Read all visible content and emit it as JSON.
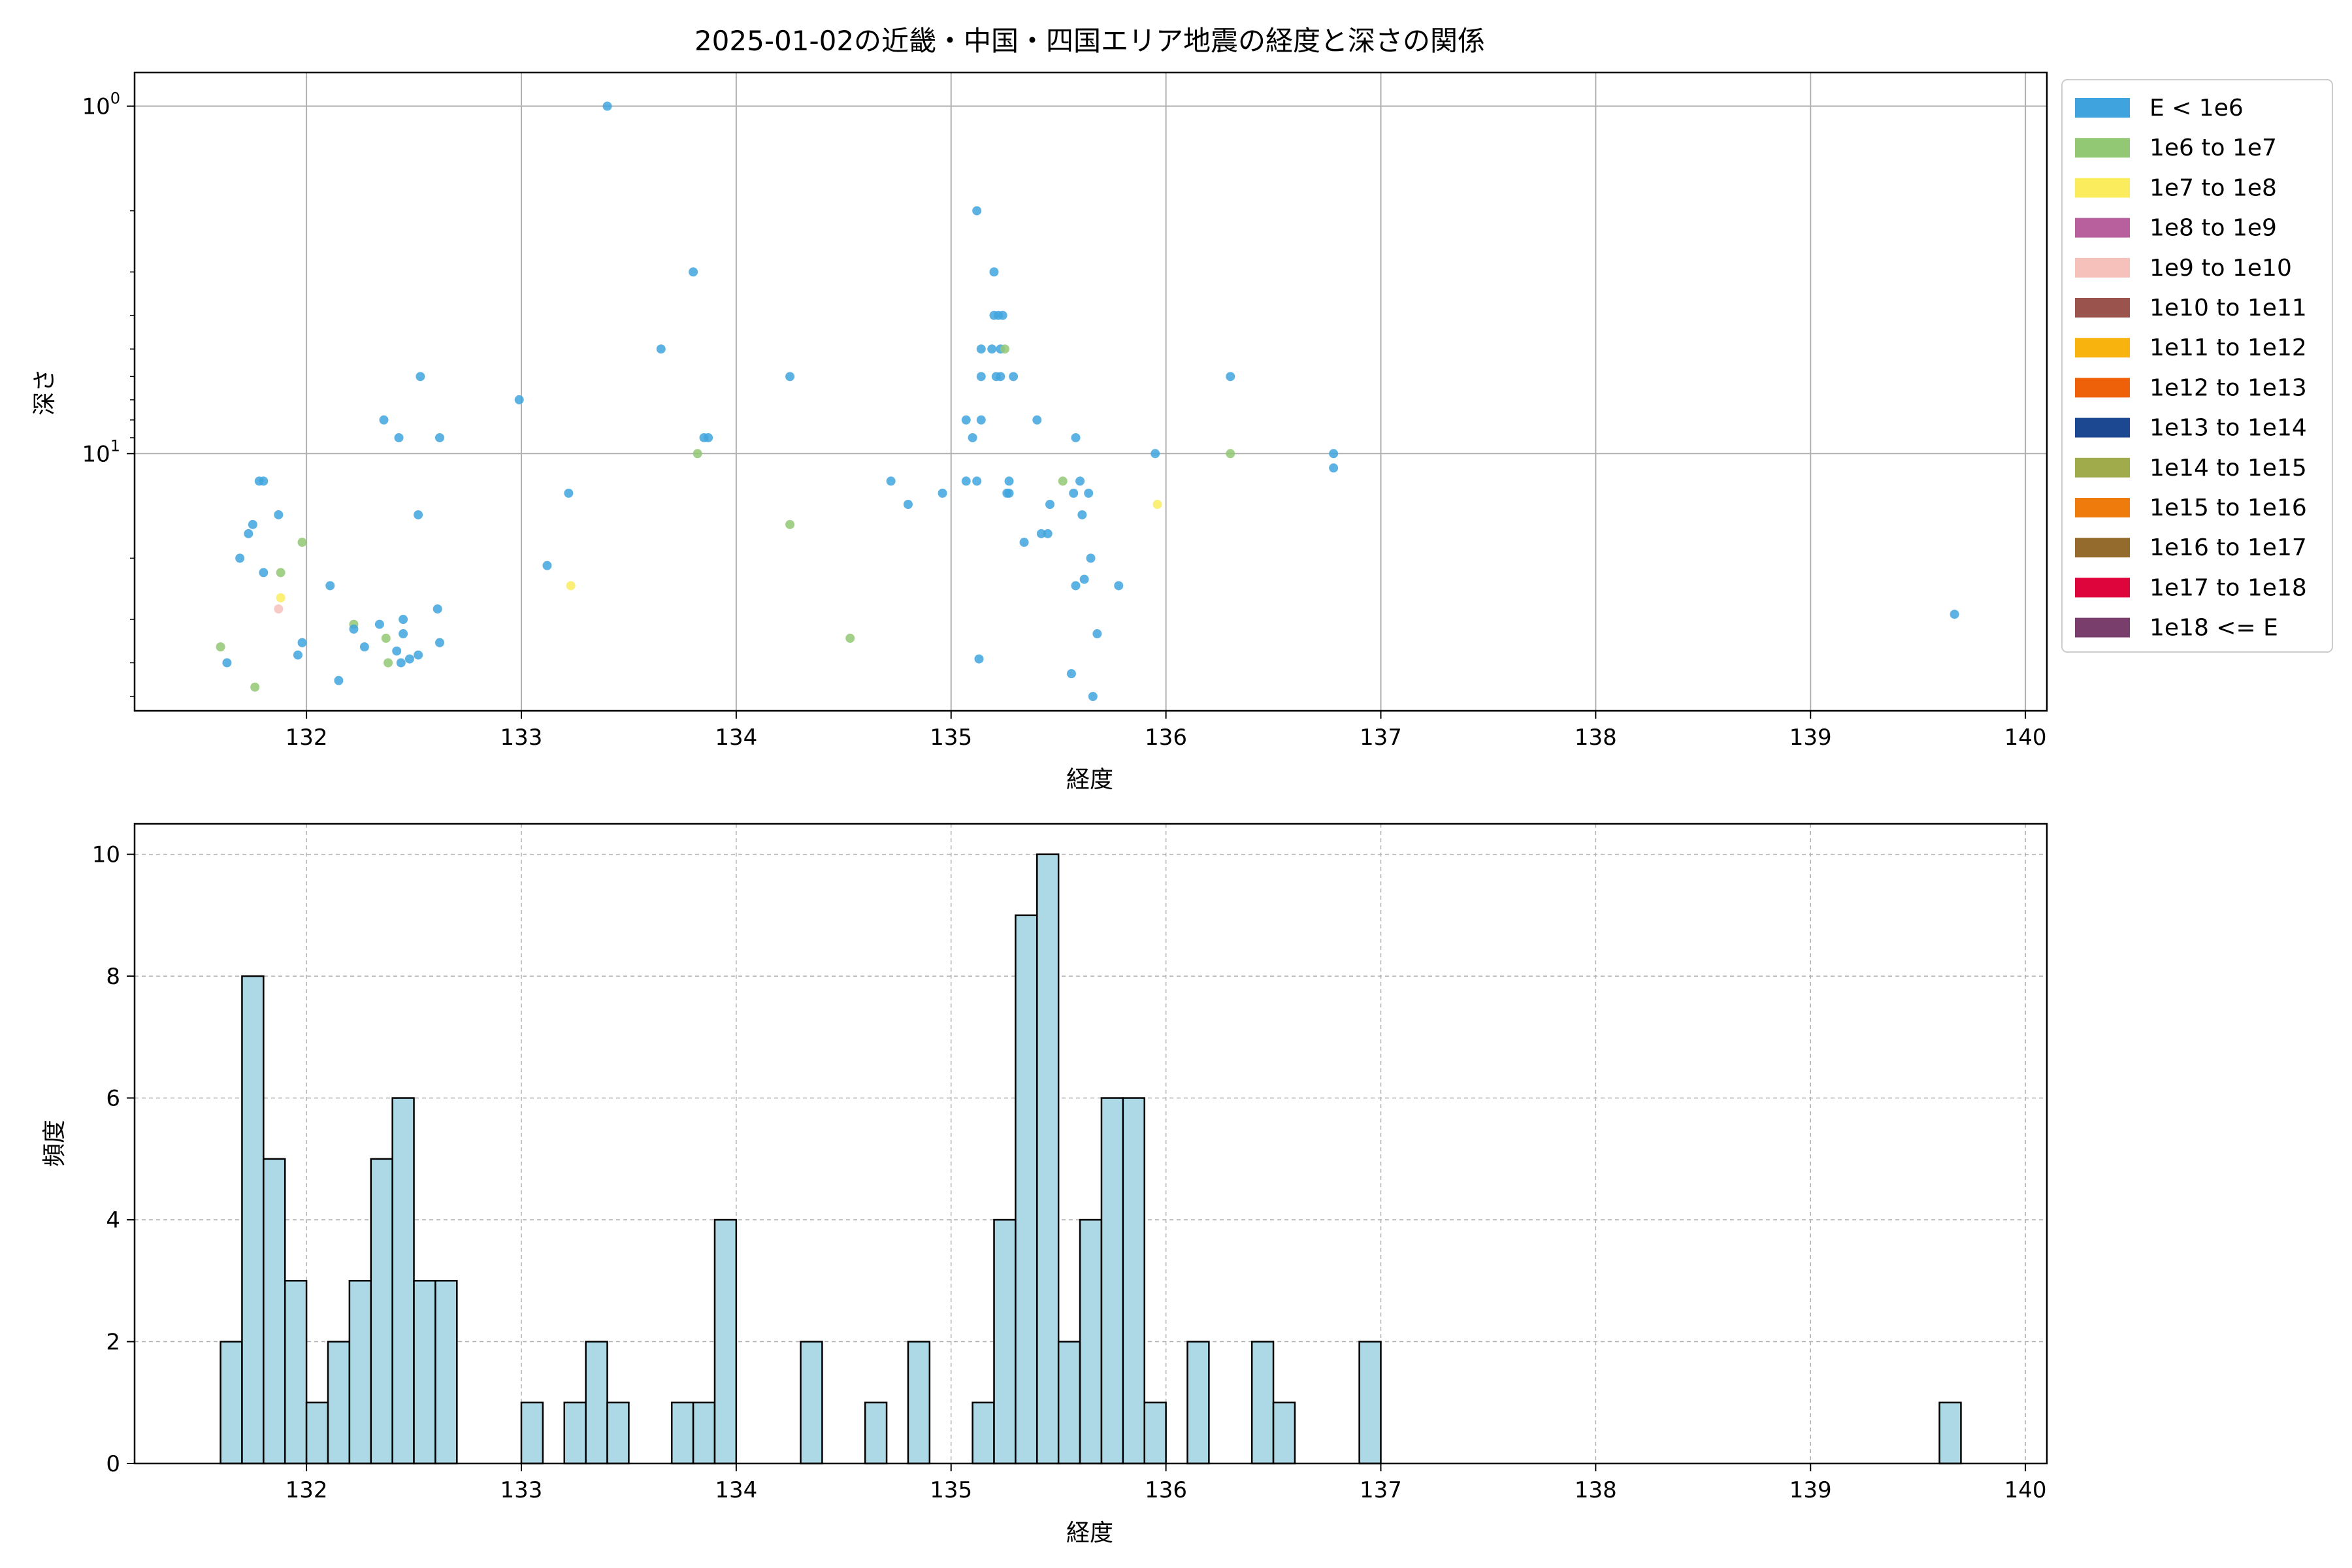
{
  "figure": {
    "title": "2025-01-02の近畿・中国・四国エリア地震の経度と深さの関係"
  },
  "chart_data": [
    {
      "type": "scatter",
      "title": "2025-01-02の近畿・中国・四国エリア地震の経度と深さの関係",
      "xlabel": "経度",
      "ylabel": "深さ",
      "xlim": [
        131.2,
        140.1
      ],
      "ylim": [
        55,
        0.8
      ],
      "yscale": "log",
      "y_inverted": true,
      "xticks": [
        132,
        133,
        134,
        135,
        136,
        137,
        138,
        139,
        140
      ],
      "xtick_labels": [
        "132",
        "133",
        "134",
        "135",
        "136",
        "137",
        "138",
        "139",
        "140"
      ],
      "ytick_labels": [
        {
          "value": 1,
          "base": "10",
          "exp": "0"
        },
        {
          "value": 10,
          "base": "10",
          "exp": "1"
        }
      ],
      "grid": true,
      "legend_position": "outside-right",
      "legend": [
        {
          "label": "E < 1e6",
          "color": "#3fa4dd"
        },
        {
          "label": "1e6 to 1e7",
          "color": "#92c873"
        },
        {
          "label": "1e7 to 1e8",
          "color": "#fbec5d"
        },
        {
          "label": "1e8 to 1e9",
          "color": "#b8609e"
        },
        {
          "label": "1e9 to 1e10",
          "color": "#f6c1bb"
        },
        {
          "label": "1e10 to 1e11",
          "color": "#9b534e"
        },
        {
          "label": "1e11 to 1e12",
          "color": "#f9b30f"
        },
        {
          "label": "1e12 to 1e13",
          "color": "#ef6109"
        },
        {
          "label": "1e13 to 1e14",
          "color": "#1c4892"
        },
        {
          "label": "1e14 to 1e15",
          "color": "#a0ac4c"
        },
        {
          "label": "1e15 to 1e16",
          "color": "#ee7b0c"
        },
        {
          "label": "1e16 to 1e17",
          "color": "#946b2d"
        },
        {
          "label": "1e17 to 1e18",
          "color": "#de053d"
        },
        {
          "label": "1e18 <= E",
          "color": "#7a3e6c"
        }
      ],
      "points": [
        {
          "x": 131.6,
          "y": 36,
          "c": 1
        },
        {
          "x": 131.63,
          "y": 40,
          "c": 0
        },
        {
          "x": 131.69,
          "y": 20,
          "c": 0
        },
        {
          "x": 131.73,
          "y": 17,
          "c": 0
        },
        {
          "x": 131.75,
          "y": 16,
          "c": 0
        },
        {
          "x": 131.76,
          "y": 47,
          "c": 1
        },
        {
          "x": 131.78,
          "y": 12,
          "c": 0
        },
        {
          "x": 131.8,
          "y": 12,
          "c": 0
        },
        {
          "x": 131.8,
          "y": 22,
          "c": 0
        },
        {
          "x": 131.87,
          "y": 15,
          "c": 0
        },
        {
          "x": 131.88,
          "y": 22,
          "c": 1
        },
        {
          "x": 131.88,
          "y": 26,
          "c": 2
        },
        {
          "x": 131.87,
          "y": 28,
          "c": 4
        },
        {
          "x": 131.96,
          "y": 38,
          "c": 0
        },
        {
          "x": 131.98,
          "y": 18,
          "c": 1
        },
        {
          "x": 131.98,
          "y": 35,
          "c": 0
        },
        {
          "x": 132.11,
          "y": 24,
          "c": 0
        },
        {
          "x": 132.15,
          "y": 45,
          "c": 0
        },
        {
          "x": 132.22,
          "y": 31,
          "c": 1
        },
        {
          "x": 132.22,
          "y": 32,
          "c": 0
        },
        {
          "x": 132.27,
          "y": 36,
          "c": 0
        },
        {
          "x": 132.34,
          "y": 31,
          "c": 0
        },
        {
          "x": 132.36,
          "y": 8,
          "c": 0
        },
        {
          "x": 132.37,
          "y": 34,
          "c": 1
        },
        {
          "x": 132.38,
          "y": 40,
          "c": 1
        },
        {
          "x": 132.42,
          "y": 37,
          "c": 0
        },
        {
          "x": 132.43,
          "y": 9,
          "c": 0
        },
        {
          "x": 132.44,
          "y": 40,
          "c": 0
        },
        {
          "x": 132.45,
          "y": 33,
          "c": 0
        },
        {
          "x": 132.45,
          "y": 30,
          "c": 0
        },
        {
          "x": 132.48,
          "y": 39,
          "c": 0
        },
        {
          "x": 132.52,
          "y": 38,
          "c": 0
        },
        {
          "x": 132.52,
          "y": 15,
          "c": 0
        },
        {
          "x": 132.53,
          "y": 6,
          "c": 0
        },
        {
          "x": 132.61,
          "y": 28,
          "c": 0
        },
        {
          "x": 132.62,
          "y": 9,
          "c": 0
        },
        {
          "x": 132.62,
          "y": 35,
          "c": 0
        },
        {
          "x": 132.99,
          "y": 7,
          "c": 0
        },
        {
          "x": 133.12,
          "y": 21,
          "c": 0
        },
        {
          "x": 133.22,
          "y": 13,
          "c": 0
        },
        {
          "x": 133.23,
          "y": 24,
          "c": 2
        },
        {
          "x": 133.4,
          "y": 1,
          "c": 0
        },
        {
          "x": 133.65,
          "y": 5,
          "c": 0
        },
        {
          "x": 133.8,
          "y": 3,
          "c": 0
        },
        {
          "x": 133.82,
          "y": 10,
          "c": 1
        },
        {
          "x": 133.85,
          "y": 9,
          "c": 0
        },
        {
          "x": 133.87,
          "y": 9,
          "c": 0
        },
        {
          "x": 134.25,
          "y": 6,
          "c": 0
        },
        {
          "x": 134.25,
          "y": 16,
          "c": 1
        },
        {
          "x": 134.53,
          "y": 34,
          "c": 1
        },
        {
          "x": 134.72,
          "y": 12,
          "c": 0
        },
        {
          "x": 134.8,
          "y": 14,
          "c": 0
        },
        {
          "x": 134.96,
          "y": 13,
          "c": 0
        },
        {
          "x": 135.07,
          "y": 12,
          "c": 0
        },
        {
          "x": 135.07,
          "y": 8,
          "c": 0
        },
        {
          "x": 135.1,
          "y": 9,
          "c": 0
        },
        {
          "x": 135.12,
          "y": 2,
          "c": 0
        },
        {
          "x": 135.12,
          "y": 12,
          "c": 0
        },
        {
          "x": 135.13,
          "y": 39,
          "c": 0
        },
        {
          "x": 135.14,
          "y": 5,
          "c": 0
        },
        {
          "x": 135.14,
          "y": 6,
          "c": 0
        },
        {
          "x": 135.14,
          "y": 8,
          "c": 0
        },
        {
          "x": 135.19,
          "y": 5,
          "c": 0
        },
        {
          "x": 135.2,
          "y": 3,
          "c": 0
        },
        {
          "x": 135.2,
          "y": 4,
          "c": 0
        },
        {
          "x": 135.21,
          "y": 6,
          "c": 0
        },
        {
          "x": 135.22,
          "y": 4,
          "c": 0
        },
        {
          "x": 135.23,
          "y": 5,
          "c": 0
        },
        {
          "x": 135.23,
          "y": 6,
          "c": 0
        },
        {
          "x": 135.24,
          "y": 4,
          "c": 0
        },
        {
          "x": 135.25,
          "y": 5,
          "c": 1
        },
        {
          "x": 135.26,
          "y": 13,
          "c": 0
        },
        {
          "x": 135.27,
          "y": 12,
          "c": 0
        },
        {
          "x": 135.27,
          "y": 13,
          "c": 0
        },
        {
          "x": 135.29,
          "y": 6,
          "c": 0
        },
        {
          "x": 135.34,
          "y": 18,
          "c": 0
        },
        {
          "x": 135.4,
          "y": 8,
          "c": 0
        },
        {
          "x": 135.42,
          "y": 17,
          "c": 0
        },
        {
          "x": 135.45,
          "y": 17,
          "c": 0
        },
        {
          "x": 135.46,
          "y": 14,
          "c": 0
        },
        {
          "x": 135.52,
          "y": 12,
          "c": 1
        },
        {
          "x": 135.56,
          "y": 43,
          "c": 0
        },
        {
          "x": 135.57,
          "y": 13,
          "c": 0
        },
        {
          "x": 135.58,
          "y": 9,
          "c": 0
        },
        {
          "x": 135.58,
          "y": 24,
          "c": 0
        },
        {
          "x": 135.6,
          "y": 12,
          "c": 0
        },
        {
          "x": 135.61,
          "y": 15,
          "c": 0
        },
        {
          "x": 135.62,
          "y": 23,
          "c": 0
        },
        {
          "x": 135.64,
          "y": 13,
          "c": 0
        },
        {
          "x": 135.65,
          "y": 20,
          "c": 0
        },
        {
          "x": 135.66,
          "y": 50,
          "c": 0
        },
        {
          "x": 135.68,
          "y": 33,
          "c": 0
        },
        {
          "x": 135.78,
          "y": 24,
          "c": 0
        },
        {
          "x": 135.95,
          "y": 10,
          "c": 0
        },
        {
          "x": 135.96,
          "y": 14,
          "c": 2
        },
        {
          "x": 136.3,
          "y": 6,
          "c": 0
        },
        {
          "x": 136.3,
          "y": 10,
          "c": 1
        },
        {
          "x": 136.78,
          "y": 10,
          "c": 0
        },
        {
          "x": 136.78,
          "y": 11,
          "c": 0
        },
        {
          "x": 139.67,
          "y": 29,
          "c": 0
        }
      ]
    },
    {
      "type": "bar",
      "subtype": "histogram",
      "xlabel": "経度",
      "ylabel": "頻度",
      "xlim": [
        131.2,
        140.1
      ],
      "ylim": [
        0,
        10.5
      ],
      "xticks": [
        132,
        133,
        134,
        135,
        136,
        137,
        138,
        139,
        140
      ],
      "xtick_labels": [
        "132",
        "133",
        "134",
        "135",
        "136",
        "137",
        "138",
        "139",
        "140"
      ],
      "yticks": [
        0,
        2,
        4,
        6,
        8,
        10
      ],
      "ytick_labels": [
        "0",
        "2",
        "4",
        "6",
        "8",
        "10"
      ],
      "grid": true,
      "bar_color": "#add8e6",
      "bin_start": 131.6,
      "bin_width": 0.1,
      "values": [
        2,
        8,
        5,
        3,
        1,
        2,
        3,
        5,
        6,
        3,
        3,
        0,
        0,
        0,
        1,
        0,
        1,
        2,
        1,
        0,
        0,
        1,
        1,
        4,
        0,
        0,
        0,
        2,
        0,
        0,
        1,
        0,
        2,
        0,
        0,
        1,
        4,
        9,
        10,
        2,
        4,
        6,
        6,
        1,
        0,
        2,
        0,
        0,
        2,
        1,
        0,
        0,
        0,
        2,
        0,
        0,
        0,
        0,
        0,
        0,
        0,
        0,
        0,
        0,
        0,
        0,
        0,
        0,
        0,
        0,
        0,
        0,
        0,
        0,
        0,
        0,
        0,
        0,
        0,
        0,
        1
      ]
    }
  ]
}
